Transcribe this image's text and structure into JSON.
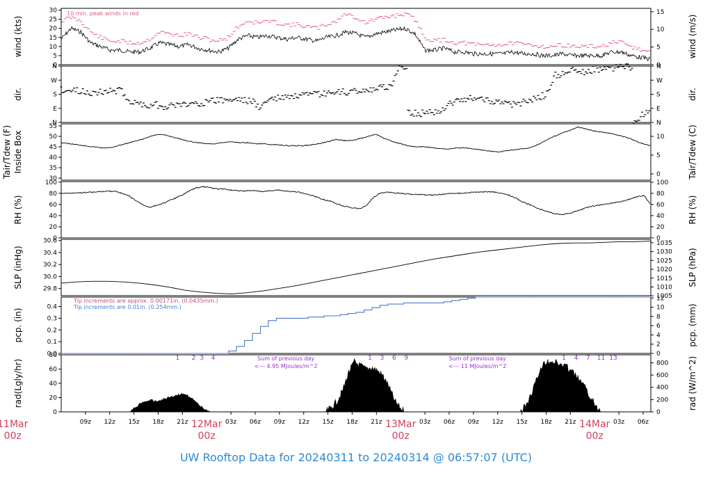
{
  "colors": {
    "series": "#000000",
    "peak": "#e05a75",
    "precip_fine": "#c0507a",
    "precip_coarse": "#3a7fd5",
    "purple": "#9a2fd0",
    "day_label": "#d0405a",
    "title": "#2a8ad8"
  },
  "title": "UW Rooftop Data for 20240311  to  20240314 @ 06:57:07  (UTC)",
  "x_axis": {
    "ticks": [
      "09z",
      "12z",
      "15z",
      "18z",
      "21z",
      "03z",
      "06z",
      "09z",
      "12z",
      "15z",
      "18z",
      "21z",
      "03z",
      "06z",
      "09z",
      "12z",
      "15z",
      "18z",
      "21z",
      "03z",
      "06z"
    ],
    "days": [
      {
        "label1": "11Mar",
        "label2": "00z"
      },
      {
        "label1": "12Mar",
        "label2": "00z"
      },
      {
        "label1": "13Mar",
        "label2": "00z"
      },
      {
        "label1": "14Mar",
        "label2": "00z"
      }
    ]
  },
  "chart_data": [
    {
      "type": "line",
      "panel": "wind",
      "ylabel_left": "wind (kts)",
      "ylabel_right": "wind (m/s)",
      "yticks_left": [
        "0",
        "5",
        "10",
        "15",
        "20",
        "25",
        "30"
      ],
      "yticks_right": [
        "0",
        "5",
        "10",
        "15"
      ],
      "ylim": [
        0,
        31
      ],
      "annotation": "10 min. peak winds in red",
      "series": [
        {
          "values_kts": [
            14,
            20,
            18,
            12,
            10,
            8,
            8,
            7,
            7,
            9,
            12,
            11,
            10,
            11,
            9,
            8,
            7,
            9,
            14,
            16,
            15,
            16,
            15,
            14,
            15,
            14,
            13,
            15,
            16,
            18,
            17,
            15,
            17,
            18,
            19,
            20,
            17,
            8,
            8,
            9,
            7,
            7,
            6,
            6,
            6,
            6,
            7,
            6,
            6,
            5,
            5,
            6,
            5,
            5,
            5,
            5,
            7,
            7,
            5,
            4,
            3
          ]
        },
        {
          "name": "10 min. peak winds",
          "values_kts": [
            24,
            26,
            24,
            18,
            15,
            13,
            13,
            12,
            12,
            14,
            18,
            17,
            16,
            17,
            15,
            14,
            13,
            15,
            21,
            24,
            23,
            24,
            23,
            22,
            22,
            21,
            20,
            22,
            24,
            28,
            26,
            23,
            25,
            26,
            27,
            28,
            25,
            15,
            13,
            14,
            12,
            12,
            11,
            11,
            11,
            11,
            12,
            11,
            11,
            10,
            10,
            11,
            10,
            10,
            10,
            10,
            12,
            12,
            10,
            8,
            7
          ]
        }
      ]
    },
    {
      "type": "scatter",
      "panel": "dir",
      "ylabel_left": "dir.",
      "ylabel_right": "dir.",
      "yticks_left": [
        "N",
        "E",
        "S",
        "W",
        "N"
      ],
      "yticks_right": [
        "N",
        "E",
        "S",
        "W",
        "N"
      ],
      "ylim": [
        0,
        360
      ],
      "values_deg": [
        210,
        205,
        200,
        195,
        190,
        195,
        205,
        200,
        130,
        120,
        110,
        115,
        100,
        110,
        115,
        120,
        125,
        130,
        145,
        140,
        150,
        145,
        135,
        95,
        150,
        155,
        160,
        165,
        170,
        175,
        180,
        185,
        190,
        195,
        200,
        205,
        210,
        220,
        230,
        360,
        65,
        55,
        60,
        70,
        80,
        130,
        140,
        150,
        160,
        145,
        135,
        120,
        110,
        125,
        140,
        160,
        180,
        300,
        310,
        330,
        320,
        335,
        340,
        345,
        350,
        355,
        0,
        50,
        80
      ]
    },
    {
      "type": "line",
      "panel": "temperature",
      "ylabel_left": "Tair/Tdew (F)",
      "ylabel_left2": "Inside Box",
      "ylabel_right": "Tair/Tdew (C)",
      "yticks_left": [
        "30",
        "35",
        "40",
        "45",
        "50",
        "55"
      ],
      "yticks_right": [
        "0",
        "5",
        "10"
      ],
      "ylim": [
        29,
        56
      ],
      "values_f": [
        47,
        46.5,
        46,
        45.5,
        45,
        44.5,
        44.5,
        45.5,
        46.5,
        47.5,
        48.5,
        50,
        51,
        50.5,
        49.5,
        48.5,
        47.5,
        47,
        46.5,
        46.5,
        47,
        47.5,
        47,
        47,
        46.5,
        46.5,
        46,
        46,
        45.5,
        45.5,
        45.5,
        46,
        46.5,
        47.5,
        48.5,
        48,
        48,
        49,
        50,
        51,
        49,
        47.5,
        46.5,
        45.5,
        45,
        45,
        44.5,
        44,
        44,
        44.5,
        44.5,
        44,
        43.5,
        43,
        42.5,
        43,
        43.5,
        44,
        44.5,
        46,
        48,
        50,
        51.5,
        53,
        54.5,
        53.5,
        52.5,
        52,
        51.5,
        50.5,
        49.5,
        48,
        46.5,
        45.5
      ]
    },
    {
      "type": "line",
      "panel": "rh",
      "ylabel_left": "RH (%)",
      "ylabel_right": "RH (%)",
      "yticks_left": [
        "0",
        "20",
        "40",
        "60",
        "80",
        "100"
      ],
      "yticks_right": [
        "0",
        "20",
        "40",
        "60",
        "80",
        "100"
      ],
      "ylim": [
        0,
        101
      ],
      "values": [
        80,
        80,
        81,
        81,
        82,
        82,
        83,
        84,
        83,
        80,
        75,
        67,
        60,
        55,
        58,
        62,
        67,
        72,
        78,
        85,
        90,
        92,
        90,
        88,
        88,
        86,
        85,
        84,
        85,
        84,
        83,
        85,
        86,
        84,
        83,
        82,
        80,
        76,
        72,
        68,
        65,
        60,
        56,
        54,
        52,
        58,
        72,
        80,
        82,
        81,
        80,
        79,
        78,
        78,
        77,
        77,
        78,
        79,
        80,
        80,
        81,
        82,
        82,
        83,
        82,
        80,
        77,
        72,
        65,
        60,
        55,
        50,
        46,
        43,
        42,
        44,
        48,
        52,
        56,
        58,
        60,
        62,
        64,
        66,
        70,
        74,
        76,
        60
      ]
    },
    {
      "type": "line",
      "panel": "slp",
      "ylabel_left": "SLP (inHg)",
      "ylabel_right": "SLP (hPa)",
      "yticks_left": [
        "29.8",
        "30.0",
        "30.2",
        "30.4",
        "30.6"
      ],
      "yticks_right": [
        "1005",
        "1010",
        "1015",
        "1020",
        "1025",
        "1030",
        "1035"
      ],
      "ylim": [
        29.68,
        30.62
      ],
      "values_inhg": [
        29.89,
        29.91,
        29.92,
        29.92,
        29.91,
        29.89,
        29.86,
        29.82,
        29.77,
        29.74,
        29.72,
        29.71,
        29.73,
        29.76,
        29.8,
        29.84,
        29.89,
        29.94,
        29.99,
        30.04,
        30.09,
        30.14,
        30.19,
        30.24,
        30.29,
        30.33,
        30.37,
        30.41,
        30.44,
        30.47,
        30.5,
        30.53,
        30.55,
        30.56,
        30.56,
        30.57,
        30.58,
        30.58,
        30.59
      ]
    },
    {
      "type": "line",
      "panel": "pcp",
      "ylabel_left": "pcp. (in)",
      "ylabel_right": "pcp. (mm)",
      "yticks_left": [
        "0.0",
        "0.1",
        "0.2",
        "0.3",
        "0.4"
      ],
      "yticks_right": [
        "0",
        "2",
        "4",
        "6",
        "8",
        "10",
        "12"
      ],
      "ylim": [
        0,
        0.48
      ],
      "annotation_fine": "Tip increments are approx. 0.00171in. (0.0435mm.)",
      "annotation_coarse": "Tip increments are 0.01in. (0.254mm.)",
      "values_in": [
        0,
        0,
        0,
        0,
        0,
        0,
        0,
        0,
        0,
        0,
        0,
        0,
        0,
        0,
        0,
        0,
        0,
        0,
        0,
        0,
        0,
        0.02,
        0.06,
        0.11,
        0.17,
        0.23,
        0.28,
        0.3,
        0.3,
        0.3,
        0.3,
        0.31,
        0.31,
        0.32,
        0.32,
        0.33,
        0.34,
        0.35,
        0.37,
        0.39,
        0.41,
        0.42,
        0.42,
        0.43,
        0.43,
        0.43,
        0.43,
        0.43,
        0.44,
        0.45,
        0.46,
        0.47,
        0.48,
        0.48,
        0.48,
        0.48,
        0.48,
        0.48,
        0.48,
        0.48,
        0.48,
        0.48,
        0.48,
        0.48,
        0.48,
        0.48,
        0.48,
        0.48,
        0.48,
        0.48,
        0.48,
        0.48,
        0.48,
        0.48,
        0.48
      ]
    },
    {
      "type": "area",
      "panel": "rad",
      "ylabel_left": "rad(Lgly/hr)",
      "ylabel_right": "rad (W/m^2)",
      "yticks_left": [
        "0",
        "20",
        "40",
        "60",
        "80"
      ],
      "yticks_right": [
        "0",
        "200",
        "400",
        "600",
        "800"
      ],
      "ylim": [
        0,
        80
      ],
      "day_markers": [
        [
          "1",
          "2",
          "3",
          "4"
        ],
        [
          "1",
          "3",
          "6",
          "9"
        ],
        [
          "1",
          "4",
          "7",
          "11",
          "13"
        ]
      ],
      "daily_sums": [
        {
          "title": "Sum of previous day",
          "value": "<--- 4.95 MJoules/m^2"
        },
        {
          "title": "Sum of previous day",
          "value": "<--- 11 MJoules/m^2"
        }
      ],
      "day_profiles_lgly": [
        [
          0,
          6,
          12,
          15,
          16,
          15,
          17,
          20,
          22,
          24,
          25,
          22,
          15,
          8,
          4,
          0
        ],
        [
          0,
          6,
          15,
          30,
          55,
          70,
          65,
          60,
          62,
          58,
          50,
          35,
          15,
          5,
          0
        ],
        [
          0,
          10,
          30,
          55,
          70,
          72,
          68,
          65,
          60,
          50,
          40,
          25,
          10,
          0
        ]
      ]
    }
  ]
}
